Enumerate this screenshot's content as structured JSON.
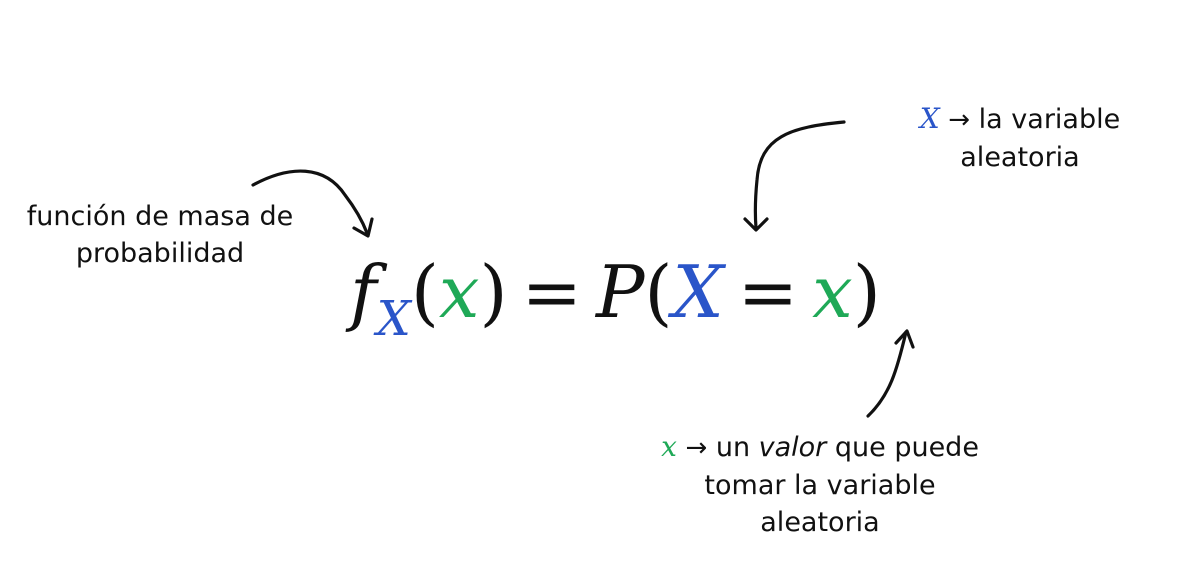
{
  "colors": {
    "random_variable": "#2a55c9",
    "value": "#1fa957",
    "text": "#111111",
    "background": "#ffffff"
  },
  "formula": {
    "f": "f",
    "subscript": "X",
    "open1": "(",
    "arg": "x",
    "close1": ")",
    "equals1": "=",
    "P": "P",
    "open2": "(",
    "X": "X",
    "equals2": "=",
    "x": "x",
    "close2": ")"
  },
  "annotations": {
    "pmf": {
      "line1": "función de masa de",
      "line2": "probabilidad"
    },
    "random_variable": {
      "symbol": "X",
      "arrow": "→",
      "line1_rest": " la variable",
      "line2": "aleatoria"
    },
    "value": {
      "symbol": "x",
      "arrow": "→",
      "line1_mid": " un ",
      "line1_italic": "valor",
      "line1_end": " que puede",
      "line2": "tomar la variable",
      "line3": "aleatoria"
    }
  }
}
